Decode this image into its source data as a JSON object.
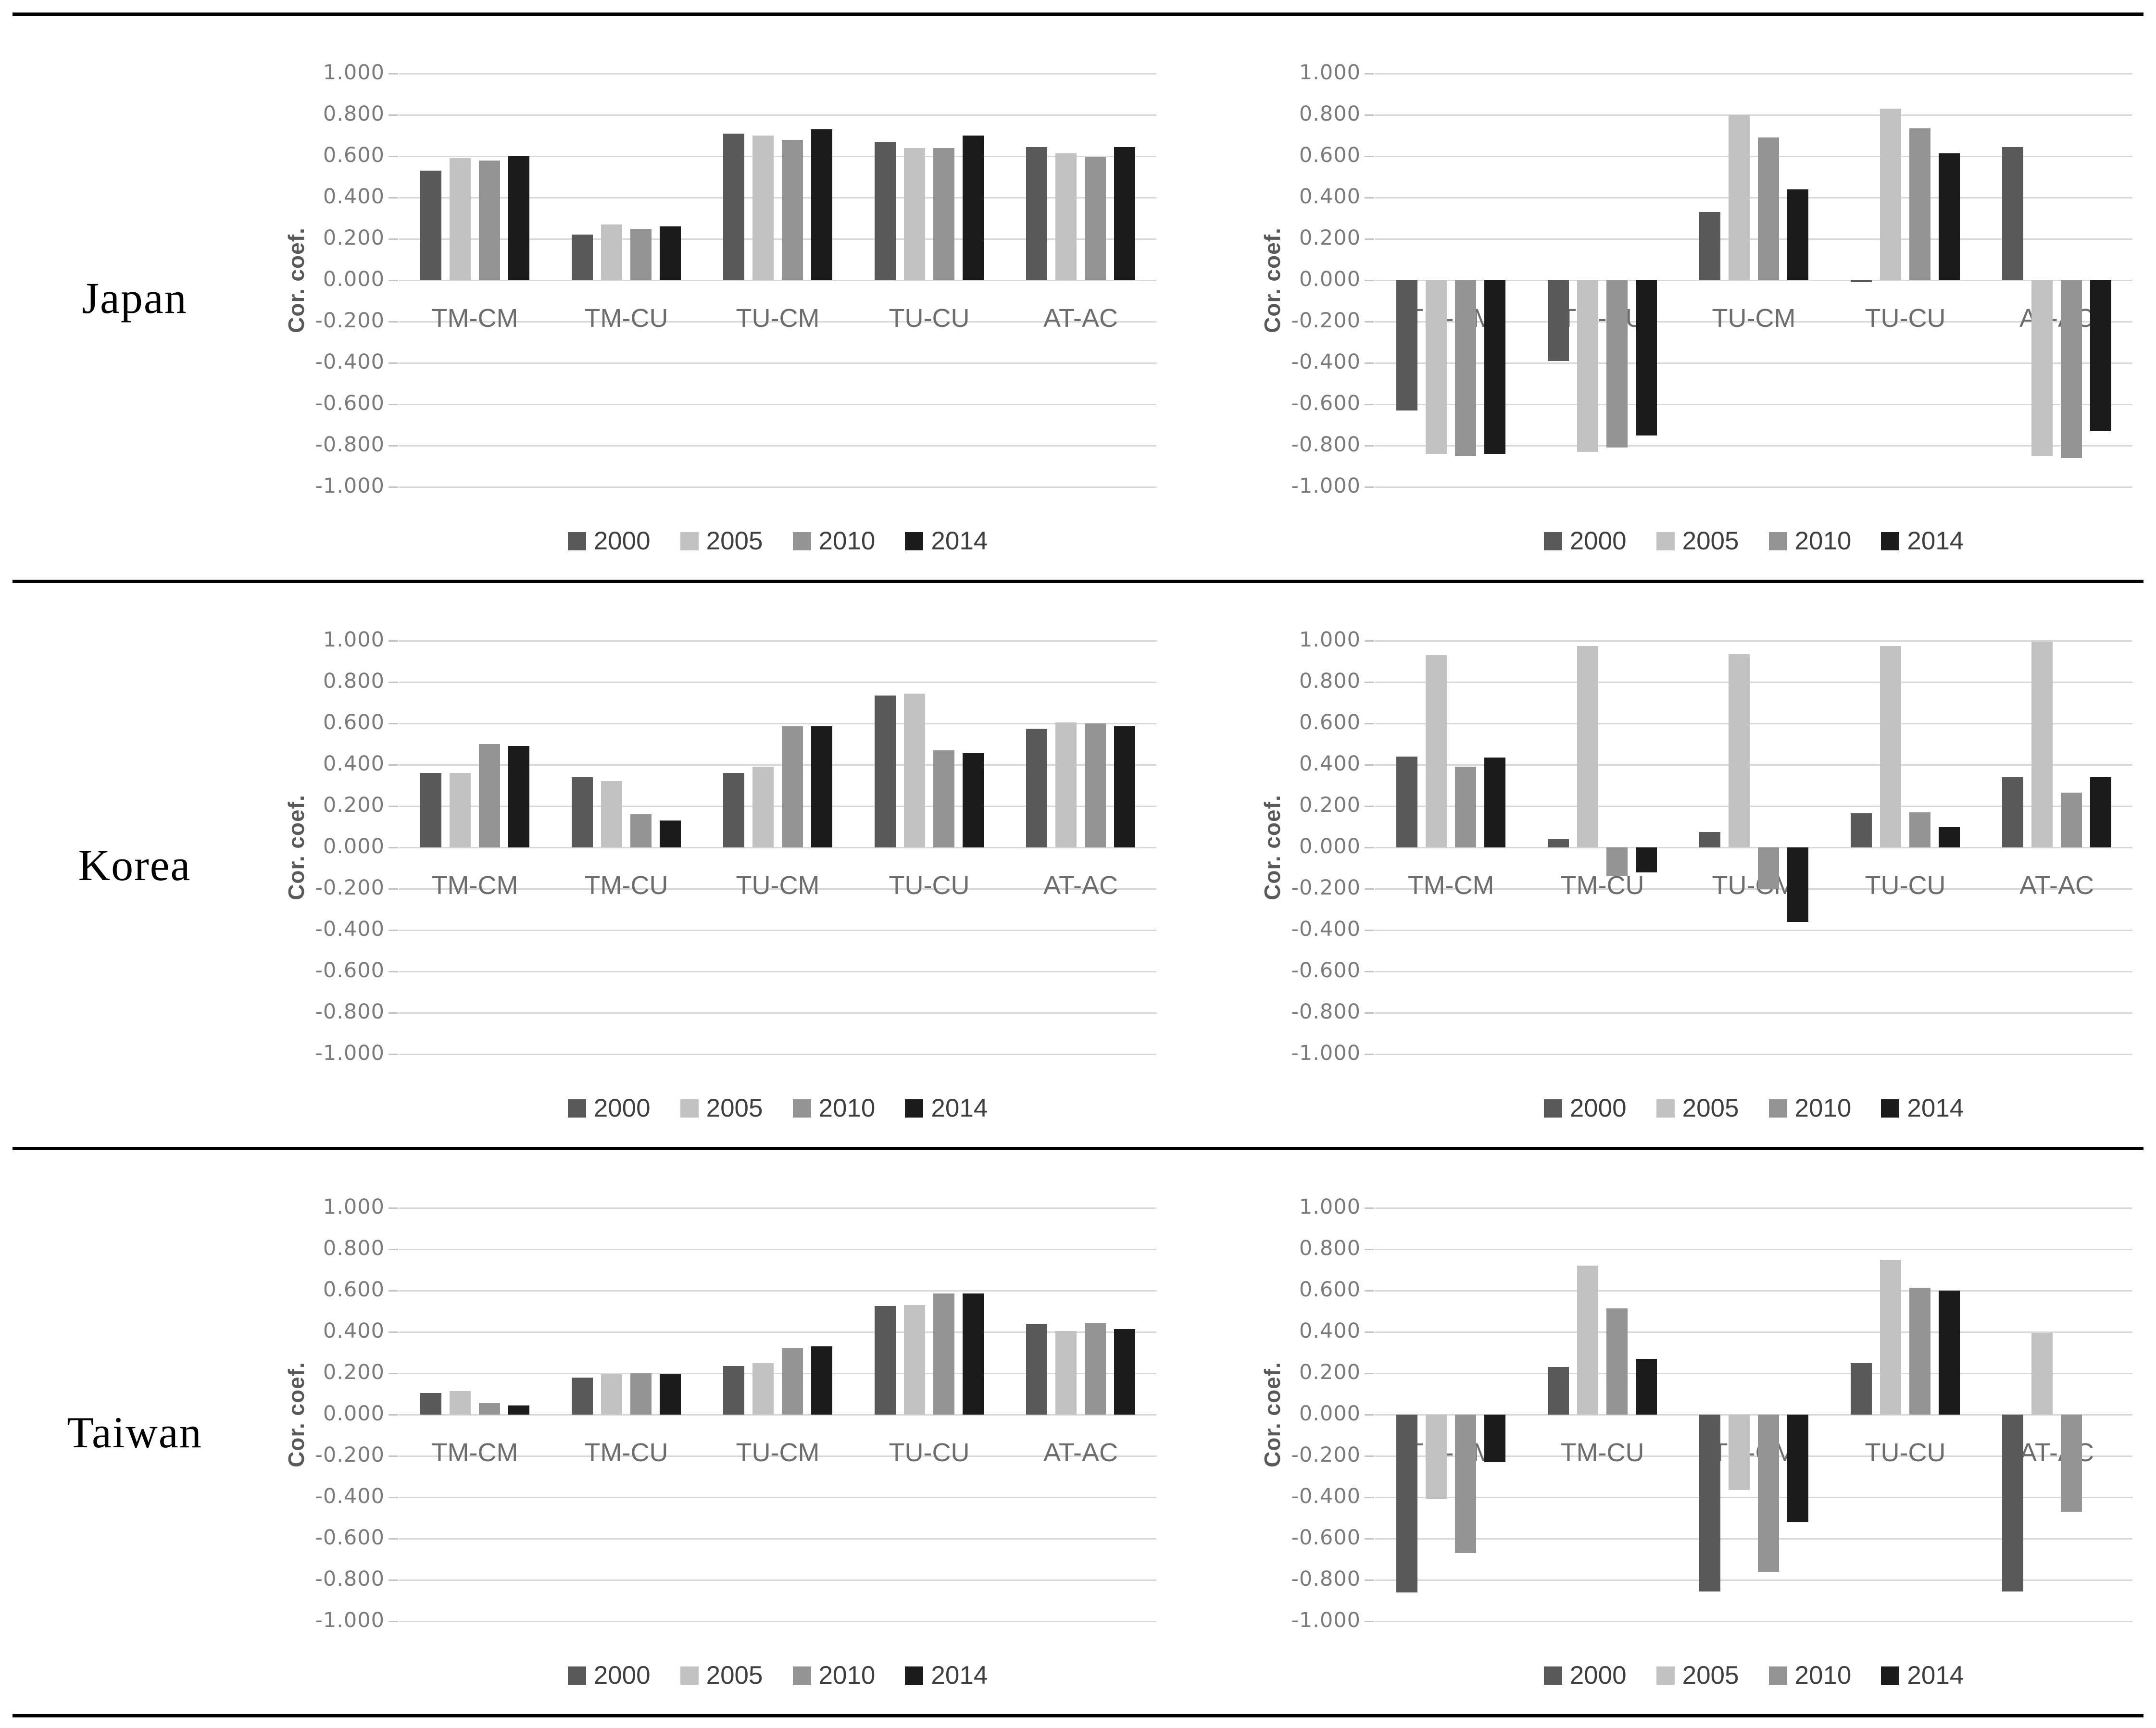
{
  "figure": {
    "rows": [
      {
        "label": "Japan"
      },
      {
        "label": "Korea"
      },
      {
        "label": "Taiwan"
      }
    ]
  },
  "axis": {
    "title": "Cor. coef.",
    "tick_labels": [
      "1.000",
      "0.800",
      "0.600",
      "0.400",
      "0.200",
      "0.000",
      "-0.200",
      "-0.400",
      "-0.600",
      "-0.800",
      "-1.000"
    ],
    "ylim": [
      -1.0,
      1.0
    ],
    "grid": true
  },
  "legend": {
    "position": "bottom",
    "items": [
      {
        "label": "2000",
        "color": "#595959"
      },
      {
        "label": "2005",
        "color": "#c2c2c2"
      },
      {
        "label": "2010",
        "color": "#949494"
      },
      {
        "label": "2014",
        "color": "#1b1b1b"
      }
    ]
  },
  "chart_data": [
    {
      "type": "bar",
      "country": "Japan",
      "panel": "left",
      "ylabel": "Cor. coef.",
      "ylim": [
        -1.0,
        1.0
      ],
      "categories": [
        "TM-CM",
        "TM-CU",
        "TU-CM",
        "TU-CU",
        "AT-AC"
      ],
      "series": [
        {
          "name": "2000",
          "values": [
            0.53,
            0.22,
            0.71,
            0.67,
            0.645
          ]
        },
        {
          "name": "2005",
          "values": [
            0.59,
            0.27,
            0.7,
            0.64,
            0.615
          ]
        },
        {
          "name": "2010",
          "values": [
            0.58,
            0.25,
            0.68,
            0.64,
            0.595
          ]
        },
        {
          "name": "2014",
          "values": [
            0.6,
            0.26,
            0.73,
            0.7,
            0.645
          ]
        }
      ]
    },
    {
      "type": "bar",
      "country": "Japan",
      "panel": "right",
      "ylabel": "Cor. coef.",
      "ylim": [
        -1.0,
        1.0
      ],
      "categories": [
        "TM-CM",
        "TM-CU",
        "TU-CM",
        "TU-CU",
        "AT-AC"
      ],
      "series": [
        {
          "name": "2000",
          "values": [
            -0.63,
            -0.39,
            0.33,
            -0.01,
            0.645
          ]
        },
        {
          "name": "2005",
          "values": [
            -0.84,
            -0.83,
            0.8,
            0.83,
            -0.85
          ]
        },
        {
          "name": "2010",
          "values": [
            -0.85,
            -0.81,
            0.69,
            0.735,
            -0.86
          ]
        },
        {
          "name": "2014",
          "values": [
            -0.84,
            -0.75,
            0.44,
            0.615,
            -0.73
          ]
        }
      ]
    },
    {
      "type": "bar",
      "country": "Korea",
      "panel": "left",
      "ylabel": "Cor. coef.",
      "ylim": [
        -1.0,
        1.0
      ],
      "categories": [
        "TM-CM",
        "TM-CU",
        "TU-CM",
        "TU-CU",
        "AT-AC"
      ],
      "series": [
        {
          "name": "2000",
          "values": [
            0.36,
            0.34,
            0.36,
            0.735,
            0.575
          ]
        },
        {
          "name": "2005",
          "values": [
            0.36,
            0.32,
            0.39,
            0.745,
            0.605
          ]
        },
        {
          "name": "2010",
          "values": [
            0.5,
            0.16,
            0.585,
            0.47,
            0.6
          ]
        },
        {
          "name": "2014",
          "values": [
            0.49,
            0.13,
            0.585,
            0.455,
            0.585
          ]
        }
      ]
    },
    {
      "type": "bar",
      "country": "Korea",
      "panel": "right",
      "ylabel": "Cor. coef.",
      "ylim": [
        -1.0,
        1.0
      ],
      "categories": [
        "TM-CM",
        "TM-CU",
        "TU-CM",
        "TU-CU",
        "AT-AC"
      ],
      "series": [
        {
          "name": "2000",
          "values": [
            0.44,
            0.04,
            0.075,
            0.165,
            0.34
          ]
        },
        {
          "name": "2005",
          "values": [
            0.93,
            0.975,
            0.935,
            0.975,
            0.995
          ]
        },
        {
          "name": "2010",
          "values": [
            0.39,
            -0.14,
            -0.2,
            0.17,
            0.265
          ]
        },
        {
          "name": "2014",
          "values": [
            0.435,
            -0.12,
            -0.36,
            0.1,
            0.34
          ]
        }
      ]
    },
    {
      "type": "bar",
      "country": "Taiwan",
      "panel": "left",
      "ylabel": "Cor. coef.",
      "ylim": [
        -1.0,
        1.0
      ],
      "categories": [
        "TM-CM",
        "TM-CU",
        "TU-CM",
        "TU-CU",
        "AT-AC"
      ],
      "series": [
        {
          "name": "2000",
          "values": [
            0.105,
            0.18,
            0.235,
            0.525,
            0.44
          ]
        },
        {
          "name": "2005",
          "values": [
            0.115,
            0.195,
            0.25,
            0.53,
            0.405
          ]
        },
        {
          "name": "2010",
          "values": [
            0.055,
            0.2,
            0.32,
            0.585,
            0.445
          ]
        },
        {
          "name": "2014",
          "values": [
            0.045,
            0.195,
            0.33,
            0.585,
            0.415
          ]
        }
      ]
    },
    {
      "type": "bar",
      "country": "Taiwan",
      "panel": "right",
      "ylabel": "Cor. coef.",
      "ylim": [
        -1.0,
        1.0
      ],
      "categories": [
        "TM-CM",
        "TM-CU",
        "TU-CM",
        "TU-CU",
        "AT-AC"
      ],
      "series": [
        {
          "name": "2000",
          "values": [
            -0.86,
            0.23,
            -0.855,
            0.25,
            -0.855
          ]
        },
        {
          "name": "2005",
          "values": [
            -0.41,
            0.72,
            -0.365,
            0.75,
            0.395
          ]
        },
        {
          "name": "2010",
          "values": [
            -0.67,
            0.515,
            -0.76,
            0.615,
            -0.47
          ]
        },
        {
          "name": "2014",
          "values": [
            -0.23,
            0.27,
            -0.52,
            0.6,
            0.0
          ]
        }
      ]
    }
  ]
}
